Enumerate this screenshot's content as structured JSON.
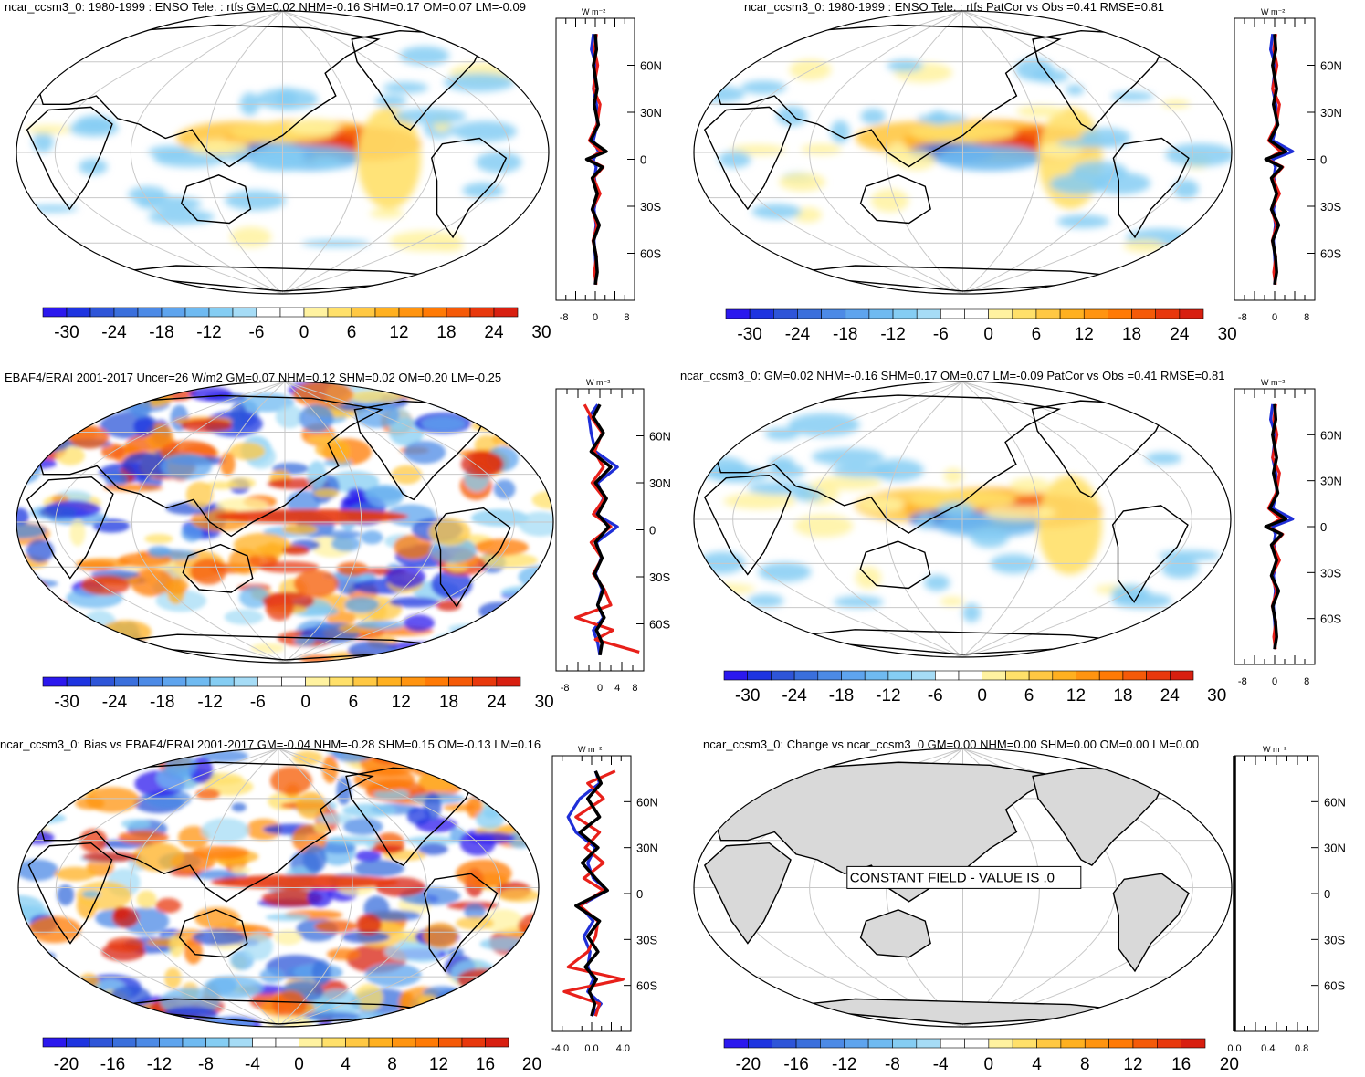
{
  "figure": {
    "units_label": "W m⁻²"
  },
  "colors": {
    "ocean": "#ffffff",
    "land_outline": "#000000",
    "grid": "#c8c8c8",
    "land_fill_constant": "#d9d9d9",
    "zonal_black": "#000000",
    "zonal_red": "#e8201a",
    "zonal_blue": "#1f2fd8"
  },
  "colorbars": {
    "enso": {
      "labels": [
        "-30",
        "-24",
        "-18",
        "-12",
        "-6",
        "0",
        "6",
        "12",
        "18",
        "24",
        "30"
      ],
      "colors": [
        "#2b18ee",
        "#1e34e0",
        "#2e55d8",
        "#3a6fdc",
        "#4c8ae6",
        "#5ea4ee",
        "#6fbaf1",
        "#85cdf3",
        "#a6dcf6",
        "#ffffff",
        "#ffffff",
        "#fff2a0",
        "#ffe06a",
        "#ffc843",
        "#ffb020",
        "#ff9410",
        "#ff7a05",
        "#f55a08",
        "#e8380c",
        "#d81f10"
      ]
    },
    "bias": {
      "labels": [
        "-20",
        "-16",
        "-12",
        "-8",
        "-4",
        "0",
        "4",
        "8",
        "12",
        "16",
        "20"
      ],
      "colors": [
        "#2b18ee",
        "#1e34e0",
        "#2e55d8",
        "#3a6fdc",
        "#4c8ae6",
        "#5ea4ee",
        "#6fbaf1",
        "#85cdf3",
        "#a6dcf6",
        "#ffffff",
        "#ffffff",
        "#fff2a0",
        "#ffe06a",
        "#ffc843",
        "#ffb020",
        "#ff9410",
        "#ff7a05",
        "#f55a08",
        "#e8380c",
        "#d81f10"
      ]
    }
  },
  "chart_data": [
    {
      "type": "heatmap",
      "panel": "top-left",
      "title": "ncar_ccsm3_0: 1980-1999 : ENSO Tele. : rtfs GM=0.02 NHM=-0.16 SHM=0.17 OM=0.07 LM=-0.09",
      "colorbar": "enso",
      "zonal": {
        "type": "line",
        "xticks": [
          "-8",
          "0",
          "8"
        ],
        "xlim": [
          -10,
          10
        ],
        "yticks": [
          "60N",
          "30N",
          "0",
          "30S",
          "60S"
        ],
        "ylim": [
          -90,
          90
        ],
        "series": [
          {
            "name": "black",
            "x": [
              0,
              0.3,
              -0.5,
              0.5,
              -0.3,
              0.8,
              -1.2,
              2.8,
              -2.2,
              1.8,
              -0.8,
              0.5,
              -0.8,
              1.0,
              -0.5,
              0.2,
              0.5,
              0
            ],
            "y": [
              80,
              70,
              60,
              45,
              35,
              22,
              12,
              5,
              0,
              -5,
              -12,
              -22,
              -32,
              -42,
              -52,
              -62,
              -72,
              -80
            ]
          },
          {
            "name": "red",
            "x": [
              0.3,
              -0.2,
              0.6,
              -0.5,
              1.2,
              0.4,
              -1.5,
              1.5,
              -1.8,
              2.0,
              -0.5,
              1.2,
              -0.8,
              0.5,
              -0.6,
              0.3,
              -0.2,
              0.2
            ],
            "y": [
              80,
              70,
              60,
              45,
              35,
              22,
              12,
              5,
              0,
              -5,
              -12,
              -22,
              -32,
              -42,
              -52,
              -62,
              -72,
              -80
            ]
          },
          {
            "name": "blue",
            "x": [
              -0.5,
              -1.0,
              0.2,
              -0.5,
              0.3,
              0.5,
              -0.5,
              0.8,
              -0.5,
              0.2,
              -0.2,
              0.5,
              -0.3,
              0.2,
              -0.3,
              0,
              0.2,
              0
            ],
            "y": [
              80,
              70,
              60,
              45,
              35,
              22,
              12,
              5,
              0,
              -5,
              -12,
              -22,
              -32,
              -42,
              -52,
              -62,
              -72,
              -80
            ]
          }
        ]
      }
    },
    {
      "type": "heatmap",
      "panel": "top-right",
      "title": "ncar_ccsm3_0: 1980-1999 : ENSO Tele. : rtfs PatCor vs Obs =0.41 RMSE=0.81",
      "colorbar": "enso",
      "zonal": {
        "type": "line",
        "xticks": [
          "-8",
          "0",
          "8"
        ],
        "xlim": [
          -10,
          10
        ],
        "yticks": [
          "60N",
          "30N",
          "0",
          "30S",
          "60S"
        ],
        "ylim": [
          -90,
          90
        ],
        "series": [
          {
            "name": "black",
            "x": [
              0,
              0.3,
              -0.5,
              0.5,
              -0.3,
              0.8,
              -1.2,
              2.8,
              -2.2,
              1.8,
              -0.8,
              0.5,
              -0.8,
              1.0,
              -0.5,
              0.2,
              0.5,
              0
            ],
            "y": [
              80,
              70,
              60,
              45,
              35,
              22,
              12,
              5,
              0,
              -5,
              -12,
              -22,
              -32,
              -42,
              -52,
              -62,
              -72,
              -80
            ]
          },
          {
            "name": "red",
            "x": [
              0.3,
              -0.2,
              0.6,
              -0.5,
              1.2,
              0.4,
              -1.5,
              1.5,
              -1.8,
              2.0,
              -0.5,
              1.2,
              -0.8,
              0.5,
              -0.6,
              0.3,
              -0.2,
              0.2
            ],
            "y": [
              80,
              70,
              60,
              45,
              35,
              22,
              12,
              5,
              0,
              -5,
              -12,
              -22,
              -32,
              -42,
              -52,
              -62,
              -72,
              -80
            ]
          },
          {
            "name": "blue",
            "x": [
              -0.5,
              -1.0,
              0.2,
              -0.5,
              0.3,
              0.5,
              -0.5,
              4.5,
              -0.5,
              0.2,
              -0.2,
              0.5,
              -0.3,
              0.2,
              -0.3,
              0,
              0.2,
              0
            ],
            "y": [
              80,
              70,
              60,
              45,
              35,
              22,
              12,
              5,
              0,
              -5,
              -12,
              -22,
              -32,
              -42,
              -52,
              -62,
              -72,
              -80
            ]
          }
        ]
      }
    },
    {
      "type": "heatmap",
      "panel": "middle-left",
      "title": "EBAF4/ERAI 2001-2017 Uncer=26 W/m2 GM=0.07 NHM=0.12 SHM=0.02 OM=0.20 LM=-0.25",
      "colorbar": "enso",
      "zonal": {
        "type": "line",
        "xticks": [
          "-8",
          "0",
          "4",
          "8"
        ],
        "xlim": [
          -10,
          10
        ],
        "yticks": [
          "60N",
          "30N",
          "0",
          "30S",
          "60S"
        ],
        "ylim": [
          -90,
          90
        ],
        "series": [
          {
            "name": "black",
            "x": [
              0,
              -1.5,
              0.8,
              -2.0,
              2.5,
              -1.0,
              1.5,
              -0.5,
              2.0,
              -1.0,
              0.5,
              -1.2,
              0.8,
              -0.5,
              1.0,
              -0.8,
              0.5,
              0
            ],
            "y": [
              80,
              72,
              62,
              50,
              40,
              30,
              20,
              10,
              2,
              -8,
              -18,
              -28,
              -38,
              -48,
              -56,
              -64,
              -72,
              -80
            ]
          },
          {
            "name": "red",
            "x": [
              -3.5,
              -2.0,
              0.5,
              -1.2,
              0.8,
              -1.8,
              1.0,
              -1.5,
              2.5,
              -2.0,
              0.5,
              -1.5,
              1.0,
              2.5,
              -5.5,
              3.0,
              -1.0,
              9.0
            ],
            "y": [
              80,
              72,
              62,
              50,
              40,
              30,
              20,
              10,
              2,
              -8,
              -18,
              -28,
              -38,
              -48,
              -56,
              -64,
              -70,
              -78
            ]
          },
          {
            "name": "blue",
            "x": [
              -0.5,
              -2.5,
              -2.0,
              -1.0,
              4.0,
              -0.5,
              0.8,
              -1.0,
              4.0,
              -0.8,
              0.3,
              -1.0,
              0.5,
              -0.5,
              0.8,
              -1.5,
              -0.5,
              0
            ],
            "y": [
              80,
              72,
              62,
              50,
              40,
              30,
              20,
              10,
              2,
              -8,
              -18,
              -28,
              -38,
              -48,
              -56,
              -64,
              -72,
              -80
            ]
          }
        ]
      }
    },
    {
      "type": "heatmap",
      "panel": "middle-right",
      "title": "ncar_ccsm3_0: GM=0.02 NHM=-0.16 SHM=0.17 OM=0.07 LM=-0.09 PatCor vs Obs =0.41 RMSE=0.81",
      "colorbar": "enso",
      "zonal": {
        "type": "line",
        "xticks": [
          "-8",
          "0",
          "8"
        ],
        "xlim": [
          -10,
          10
        ],
        "yticks": [
          "60N",
          "30N",
          "0",
          "30S",
          "60S"
        ],
        "ylim": [
          -90,
          90
        ],
        "series": [
          {
            "name": "black",
            "x": [
              0,
              0.3,
              -0.5,
              0.5,
              -0.3,
              0.8,
              -1.2,
              2.8,
              -2.2,
              1.8,
              -0.8,
              0.5,
              -0.8,
              1.0,
              -0.5,
              0.2,
              0.5,
              0
            ],
            "y": [
              80,
              70,
              60,
              45,
              35,
              22,
              12,
              5,
              0,
              -5,
              -12,
              -22,
              -32,
              -42,
              -52,
              -62,
              -72,
              -80
            ]
          },
          {
            "name": "red",
            "x": [
              0.3,
              -0.2,
              0.6,
              -0.5,
              1.2,
              0.4,
              -1.5,
              1.5,
              -1.8,
              2.0,
              -0.5,
              1.2,
              -0.8,
              0.5,
              -0.6,
              0.3,
              -0.2,
              0.2
            ],
            "y": [
              80,
              70,
              60,
              45,
              35,
              22,
              12,
              5,
              0,
              -5,
              -12,
              -22,
              -32,
              -42,
              -52,
              -62,
              -72,
              -80
            ]
          },
          {
            "name": "blue",
            "x": [
              -0.5,
              -1.0,
              0.2,
              -0.5,
              0.3,
              0.5,
              -0.5,
              4.5,
              -0.5,
              0.2,
              -0.2,
              0.5,
              -0.3,
              0.2,
              -0.3,
              0,
              0.2,
              0
            ],
            "y": [
              80,
              70,
              60,
              45,
              35,
              22,
              12,
              5,
              0,
              -5,
              -12,
              -22,
              -32,
              -42,
              -52,
              -62,
              -72,
              -80
            ]
          }
        ]
      }
    },
    {
      "type": "heatmap",
      "panel": "bottom-left",
      "title": "ncar_ccsm3_0: Bias vs EBAF4/ERAI 2001-2017 GM=-0.04 NHM=-0.28 SHM=0.15 OM=-0.13 LM=0.16",
      "colorbar": "bias",
      "zonal": {
        "type": "line",
        "xticks": [
          "-4.0",
          "0.0",
          "4.0"
        ],
        "xlim": [
          -5,
          5
        ],
        "yticks": [
          "60N",
          "30N",
          "0",
          "30S",
          "60S"
        ],
        "ylim": [
          -90,
          90
        ],
        "series": [
          {
            "name": "black",
            "x": [
              0.5,
              1.2,
              -0.5,
              1.0,
              -1.5,
              0.8,
              -1.2,
              0.5,
              2.0,
              -2.0,
              1.0,
              -0.5,
              0.8,
              -0.8,
              0.6,
              -0.3,
              0.4,
              0
            ],
            "y": [
              80,
              72,
              62,
              50,
              40,
              30,
              20,
              10,
              2,
              -8,
              -18,
              -28,
              -38,
              -48,
              -56,
              -64,
              -72,
              -80
            ]
          },
          {
            "name": "red",
            "x": [
              3.0,
              -0.5,
              1.5,
              -2.0,
              1.0,
              -0.8,
              1.5,
              -1.0,
              1.5,
              -1.5,
              0.8,
              0.5,
              -0.5,
              -3.0,
              4.0,
              -3.5,
              1.0,
              0.5
            ],
            "y": [
              80,
              72,
              62,
              50,
              40,
              30,
              20,
              10,
              2,
              -8,
              -18,
              -28,
              -38,
              -48,
              -56,
              -64,
              -72,
              -80
            ]
          },
          {
            "name": "blue",
            "x": [
              0.5,
              1.0,
              -1.5,
              -3.0,
              -2.0,
              0.5,
              -0.5,
              0.2,
              2.0,
              -1.5,
              0.2,
              -1.0,
              -0.2,
              -0.5,
              0.2,
              -0.5,
              1.2,
              0
            ],
            "y": [
              80,
              72,
              62,
              50,
              40,
              30,
              20,
              10,
              2,
              -8,
              -18,
              -28,
              -38,
              -48,
              -56,
              -64,
              -72,
              -80
            ]
          }
        ]
      }
    },
    {
      "type": "heatmap",
      "panel": "bottom-right",
      "title": "ncar_ccsm3_0: Change vs ncar_ccsm3_0 GM=0.00 NHM=0.00 SHM=0.00 OM=0.00 LM=0.00",
      "annotation": "CONSTANT FIELD - VALUE IS .0",
      "colorbar": "bias",
      "zonal": {
        "type": "line",
        "xticks": [
          "0.0",
          "0.4",
          "0.8"
        ],
        "xlim": [
          0,
          1
        ],
        "yticks": [
          "60N",
          "30N",
          "0",
          "30S",
          "60S"
        ],
        "ylim": [
          -90,
          90
        ],
        "series": [
          {
            "name": "black",
            "x": [
              0,
              0
            ],
            "y": [
              -90,
              90
            ]
          }
        ]
      }
    }
  ]
}
